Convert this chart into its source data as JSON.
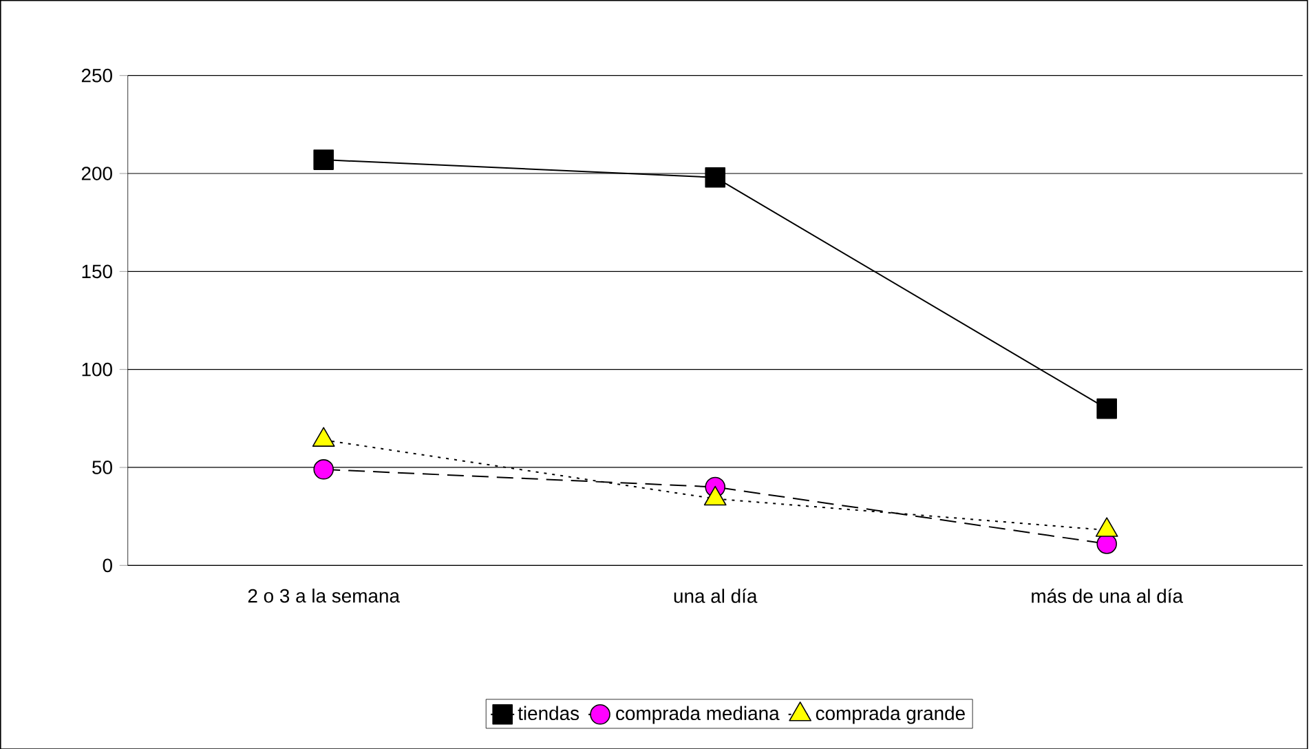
{
  "chart_data": {
    "type": "line",
    "categories": [
      "2 o 3 a la semana",
      "una al día",
      "más de una al día"
    ],
    "series": [
      {
        "name": "tiendas",
        "color": "#000000",
        "marker": "square",
        "line_style": "solid",
        "values": [
          207,
          198,
          80
        ]
      },
      {
        "name": "comprada mediana",
        "color": "#ff00ff",
        "marker": "circle",
        "line_style": "dashed",
        "values": [
          49,
          40,
          11
        ]
      },
      {
        "name": "comprada grande",
        "color": "#ffff00",
        "marker": "triangle",
        "line_style": "dotted",
        "values": [
          64,
          34,
          18
        ]
      }
    ],
    "ylim": [
      0,
      250
    ],
    "yticks": [
      0,
      50,
      100,
      150,
      200,
      250
    ],
    "grid": "y",
    "legend": "bottom"
  }
}
